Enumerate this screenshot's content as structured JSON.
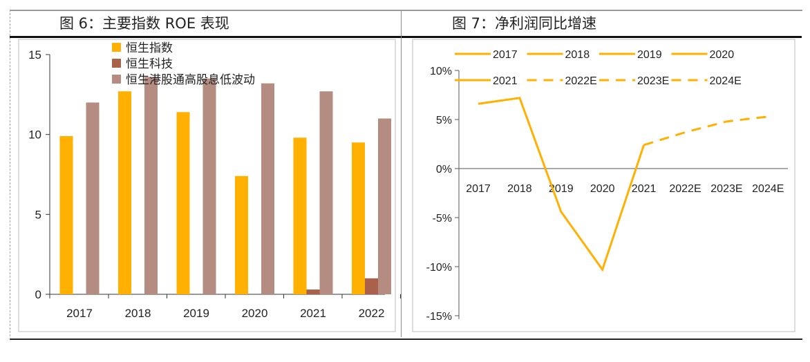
{
  "figures": [
    {
      "title": "图 6：主要指数 ROE 表现"
    },
    {
      "title": "图 7：净利润同比增速"
    }
  ],
  "chart_data": [
    {
      "type": "bar",
      "title": "图 6：主要指数 ROE 表现",
      "categories": [
        "2017",
        "2018",
        "2019",
        "2020",
        "2021",
        "2022"
      ],
      "ylim": [
        0,
        15
      ],
      "yticks": [
        0,
        5,
        10,
        15
      ],
      "legend": "top",
      "grid": false,
      "series": [
        {
          "name": "恒生指数",
          "color": "#FFB000",
          "values": [
            9.9,
            12.7,
            11.4,
            7.4,
            9.8,
            9.5
          ]
        },
        {
          "name": "恒生科技",
          "color": "#A9614A",
          "values": [
            null,
            null,
            null,
            null,
            0.3,
            1.0
          ]
        },
        {
          "name": "恒生港股通高股息低波动",
          "color": "#B58C82",
          "values": [
            12.0,
            13.6,
            13.5,
            13.2,
            12.7,
            11.0
          ]
        }
      ]
    },
    {
      "type": "line",
      "title": "图 7：净利润同比增速",
      "categories": [
        "2017",
        "2018",
        "2019",
        "2020",
        "2021",
        "2022E",
        "2023E",
        "2024E"
      ],
      "values": [
        6.6,
        7.2,
        -4.4,
        -10.3,
        2.4,
        3.7,
        4.8,
        5.3
      ],
      "unit": "%",
      "ylim": [
        -15,
        10
      ],
      "yticks": [
        "10%",
        "5%",
        "0%",
        "-5%",
        "-10%",
        "-15%"
      ],
      "color": "#FFB000",
      "dashed_from": "2021",
      "grid": false,
      "legend": "top",
      "legend_entries": [
        {
          "name": "2017",
          "style": "solid"
        },
        {
          "name": "2018",
          "style": "solid"
        },
        {
          "name": "2019",
          "style": "solid"
        },
        {
          "name": "2020",
          "style": "solid"
        },
        {
          "name": "2021",
          "style": "solid"
        },
        {
          "name": "2022E",
          "style": "dashed"
        },
        {
          "name": "2023E",
          "style": "dashed"
        },
        {
          "name": "2024E",
          "style": "dashed"
        }
      ]
    }
  ]
}
